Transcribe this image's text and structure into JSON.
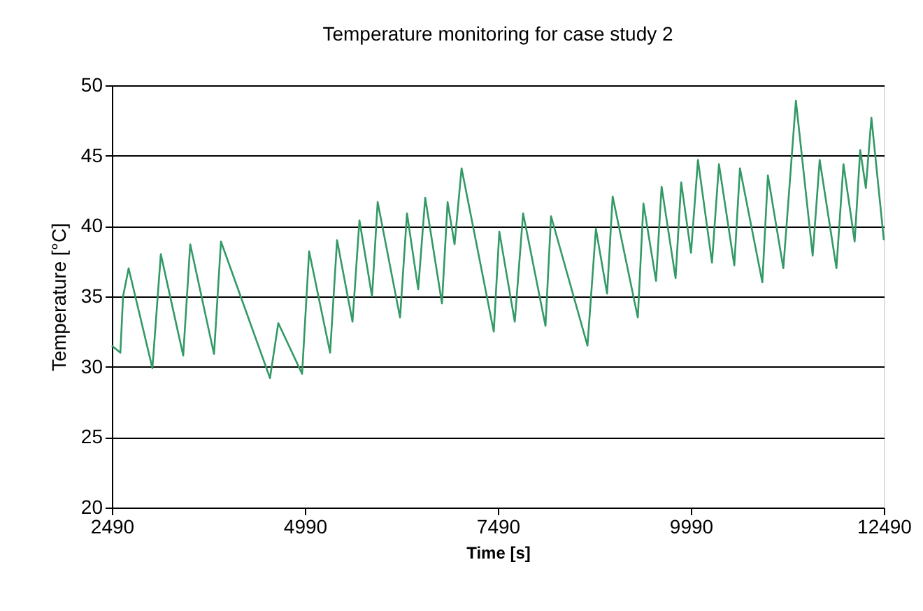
{
  "chart_data": {
    "type": "line",
    "title": "Temperature monitoring for case study 2",
    "xlabel": "Time [s]",
    "ylabel": "Temperature [°C]",
    "x": [
      2490,
      2600,
      2635,
      2707,
      3015,
      3124,
      3414,
      3505,
      3813,
      3903,
      4538,
      4646,
      4954,
      5045,
      5317,
      5407,
      5607,
      5697,
      5860,
      5933,
      6223,
      6313,
      6458,
      6549,
      6766,
      6839,
      6929,
      7020,
      7437,
      7509,
      7709,
      7817,
      8107,
      8179,
      8651,
      8760,
      8905,
      8977,
      9303,
      9376,
      9539,
      9611,
      9792,
      9865,
      9992,
      10082,
      10264,
      10354,
      10553,
      10626,
      10916,
      10988,
      11188,
      11351,
      11568,
      11659,
      11876,
      11967,
      12112,
      12184,
      12257,
      12329,
      12490
    ],
    "series": [
      {
        "color": "#339966",
        "values": [
          31.5,
          31.0,
          35.0,
          37.0,
          29.9,
          38.0,
          30.8,
          38.7,
          30.9,
          38.9,
          29.2,
          33.1,
          29.5,
          38.2,
          31.0,
          39.0,
          33.2,
          40.4,
          35.0,
          41.7,
          33.5,
          40.9,
          35.5,
          42.0,
          34.5,
          41.7,
          38.7,
          44.1,
          32.5,
          39.6,
          33.2,
          40.9,
          32.9,
          40.7,
          31.5,
          39.8,
          35.2,
          42.1,
          33.5,
          41.6,
          36.1,
          42.8,
          36.3,
          43.1,
          38.1,
          44.7,
          37.4,
          44.4,
          37.2,
          44.1,
          36.0,
          43.6,
          37.0,
          48.9,
          37.9,
          44.7,
          37.0,
          44.4,
          38.9,
          45.4,
          42.7,
          47.7,
          39.0
        ]
      }
    ],
    "xlim": [
      2490,
      12490
    ],
    "xticks": [
      2490,
      4990,
      7490,
      9990,
      12490
    ],
    "ylim": [
      20,
      50
    ],
    "yticks": [
      20,
      25,
      30,
      35,
      40,
      45,
      50
    ],
    "grid": "y",
    "legend": false,
    "marker": "none",
    "line_style": "solid"
  }
}
